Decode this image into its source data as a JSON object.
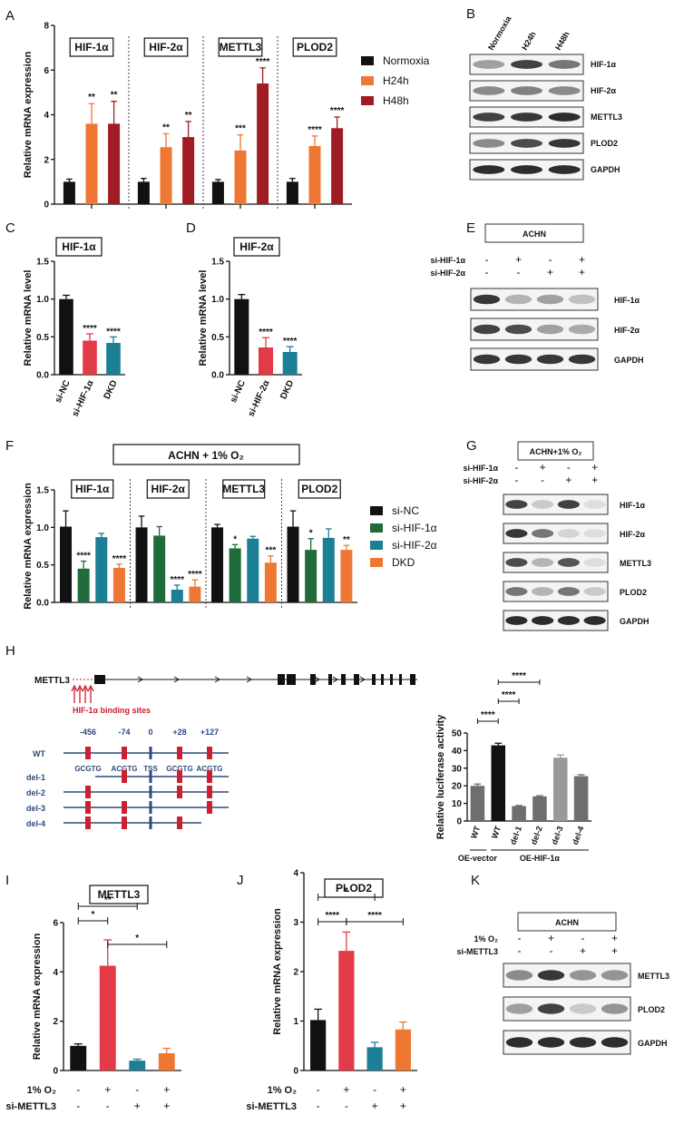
{
  "colors": {
    "black": "#111111",
    "orange": "#ee7733",
    "darkred": "#a01c24",
    "green": "#1f6b3a",
    "teal": "#1b7f95",
    "red": "#e23a46",
    "blue": "#2c4a7c",
    "gray": "#6e6e6e",
    "lightgray": "#999999",
    "marker": "#cc1f2f"
  },
  "panels": [
    "A",
    "B",
    "C",
    "D",
    "E",
    "F",
    "G",
    "H",
    "I",
    "J",
    "K"
  ],
  "chart_data": [
    {
      "panel": "A",
      "type": "bar",
      "ylabel": "Relative mRNA expression",
      "ylim": [
        0,
        8
      ],
      "yticks": [
        0,
        2,
        4,
        6,
        8
      ],
      "groups": [
        "HIF-1α",
        "HIF-2α",
        "METTL3",
        "PLOD2"
      ],
      "series": [
        {
          "name": "Normoxia",
          "values": [
            1.0,
            1.0,
            1.0,
            1.0
          ],
          "errors": [
            0.12,
            0.15,
            0.1,
            0.15
          ]
        },
        {
          "name": "H24h",
          "values": [
            3.6,
            2.55,
            2.4,
            2.6
          ],
          "errors": [
            0.9,
            0.6,
            0.7,
            0.45
          ]
        },
        {
          "name": "H48h",
          "values": [
            3.6,
            3.0,
            5.4,
            3.4
          ],
          "errors": [
            1.0,
            0.7,
            0.7,
            0.5
          ]
        }
      ],
      "stars": [
        [
          "",
          "**",
          "**"
        ],
        [
          "",
          "**",
          "**"
        ],
        [
          "",
          "***",
          "****"
        ],
        [
          "",
          "****",
          "****"
        ]
      ],
      "legend": [
        "Normoxia",
        "H24h",
        "H48h"
      ]
    },
    {
      "panel": "C",
      "type": "bar",
      "title": "HIF-1α",
      "ylabel": "Relative mRNA level",
      "ylim": [
        0,
        1.5
      ],
      "yticks": [
        "0.0",
        "0.5",
        "1.0",
        "1.5"
      ],
      "categories": [
        "si-NC",
        "si-HIF-1α",
        "DKD"
      ],
      "values": [
        1.0,
        0.45,
        0.42
      ],
      "errors": [
        0.05,
        0.09,
        0.08
      ],
      "stars": [
        "",
        "****",
        "****"
      ]
    },
    {
      "panel": "D",
      "type": "bar",
      "title": "HIF-2α",
      "ylabel": "Relative mRNA level",
      "ylim": [
        0,
        1.5
      ],
      "yticks": [
        "0.0",
        "0.5",
        "1.0",
        "1.5"
      ],
      "categories": [
        "si-NC",
        "si-HIF-2α",
        "DKD"
      ],
      "values": [
        1.0,
        0.36,
        0.3
      ],
      "errors": [
        0.06,
        0.13,
        0.07
      ],
      "stars": [
        "",
        "****",
        "****"
      ]
    },
    {
      "panel": "F",
      "type": "bar",
      "title": "ACHN + 1% O₂",
      "ylabel": "Relative mRNA expression",
      "ylim": [
        0,
        1.5
      ],
      "yticks": [
        "0.0",
        "0.5",
        "1.0",
        "1.5"
      ],
      "groups": [
        "HIF-1α",
        "HIF-2α",
        "METTL3",
        "PLOD2"
      ],
      "series": [
        {
          "name": "si-NC",
          "values": [
            1.01,
            1.0,
            1.0,
            1.01
          ],
          "errors": [
            0.21,
            0.15,
            0.04,
            0.21
          ]
        },
        {
          "name": "si-HIF-1α",
          "values": [
            0.45,
            0.89,
            0.72,
            0.7
          ],
          "errors": [
            0.1,
            0.12,
            0.05,
            0.15
          ]
        },
        {
          "name": "si-HIF-2α",
          "values": [
            0.87,
            0.17,
            0.85,
            0.86
          ],
          "errors": [
            0.05,
            0.06,
            0.03,
            0.12
          ]
        },
        {
          "name": "DKD",
          "values": [
            0.46,
            0.21,
            0.53,
            0.7
          ],
          "errors": [
            0.05,
            0.09,
            0.09,
            0.06
          ]
        }
      ],
      "stars": [
        [
          "",
          "****",
          "",
          "****"
        ],
        [
          "",
          "",
          "****",
          "****"
        ],
        [
          "",
          "*",
          "",
          "***"
        ],
        [
          "",
          "*",
          "",
          "**"
        ]
      ],
      "legend": [
        "si-NC",
        "si-HIF-1α",
        "si-HIF-2α",
        "DKD"
      ]
    },
    {
      "panel": "H",
      "type": "bar",
      "ylabel": "Relative luciferase activity",
      "ylim": [
        0,
        50
      ],
      "yticks": [
        "0",
        "10",
        "20",
        "30",
        "40",
        "50"
      ],
      "categories": [
        "WT",
        "WT",
        "del-1",
        "del-2",
        "del-3",
        "del-4"
      ],
      "values": [
        20,
        43,
        8.5,
        14,
        36,
        25.5
      ],
      "errors": [
        1.0,
        1.2,
        0.3,
        0.4,
        1.5,
        0.8
      ],
      "groups": [
        "OE-vector",
        "OE-HIF-1α"
      ],
      "sig": [
        "****",
        "****",
        "****"
      ]
    },
    {
      "panel": "I",
      "type": "bar",
      "title": "METTL3",
      "ylabel": "Relative mRNA expression",
      "ylim": [
        0,
        6
      ],
      "yticks": [
        "0",
        "2",
        "4",
        "6"
      ],
      "values": [
        1.0,
        4.25,
        0.4,
        0.7
      ],
      "errors": [
        0.08,
        1.05,
        0.06,
        0.2
      ],
      "sig": [
        "*",
        "**",
        "*"
      ],
      "conditions": [
        {
          "label": "1% O₂",
          "marks": [
            "-",
            "+",
            "-",
            "+"
          ]
        },
        {
          "label": "si-METTL3",
          "marks": [
            "-",
            "-",
            "+",
            "+"
          ]
        }
      ]
    },
    {
      "panel": "J",
      "type": "bar",
      "title": "PLOD2",
      "ylabel": "Relative mRNA expression",
      "ylim": [
        0,
        4
      ],
      "yticks": [
        "0",
        "1",
        "2",
        "3",
        "4"
      ],
      "values": [
        1.02,
        2.42,
        0.47,
        0.83
      ],
      "errors": [
        0.22,
        0.38,
        0.1,
        0.15
      ],
      "sig": [
        "****",
        "*",
        "****"
      ],
      "conditions": [
        {
          "label": "1% O₂",
          "marks": [
            "-",
            "+",
            "-",
            "+"
          ]
        },
        {
          "label": "si-METTL3",
          "marks": [
            "-",
            "-",
            "+",
            "+"
          ]
        }
      ]
    }
  ],
  "blots": {
    "B": {
      "columns": [
        "Normoxia",
        "H24h",
        "H48h"
      ],
      "rows": [
        "HIF-1α",
        "HIF-2α",
        "METTL3",
        "PLOD2",
        "GAPDH"
      ]
    },
    "E": {
      "header": "ACHN",
      "conditions": [
        {
          "label": "si-HIF-1α",
          "marks": [
            "-",
            "+",
            "-",
            "+"
          ]
        },
        {
          "label": "si-HIF-2α",
          "marks": [
            "-",
            "-",
            "+",
            "+"
          ]
        }
      ],
      "rows": [
        "HIF-1α",
        "HIF-2α",
        "GAPDH"
      ]
    },
    "G": {
      "header": "ACHN+1% O₂",
      "conditions": [
        {
          "label": "si-HIF-1α",
          "marks": [
            "-",
            "+",
            "-",
            "+"
          ]
        },
        {
          "label": "si-HIF-2α",
          "marks": [
            "-",
            "-",
            "+",
            "+"
          ]
        }
      ],
      "rows": [
        "HIF-1α",
        "HIF-2α",
        "METTL3",
        "PLOD2",
        "GAPDH"
      ]
    },
    "K": {
      "header": "ACHN",
      "conditions": [
        {
          "label": "1% O₂",
          "marks": [
            "-",
            "+",
            "-",
            "+"
          ]
        },
        {
          "label": "si-METTL3",
          "marks": [
            "-",
            "-",
            "+",
            "+"
          ]
        }
      ],
      "rows": [
        "METTL3",
        "PLOD2",
        "GAPDH"
      ]
    }
  },
  "gene_diagram": {
    "gene": "METTL3",
    "binding_label": "HIF-1α binding sites",
    "positions": [
      "-456",
      "-74",
      "0",
      "+28",
      "+127"
    ],
    "motifs": [
      "GCGTG",
      "ACGTG",
      "TSS",
      "GCGTG",
      "ACGTG"
    ],
    "constructs": [
      "WT",
      "del-1",
      "del-2",
      "del-3",
      "del-4"
    ]
  }
}
